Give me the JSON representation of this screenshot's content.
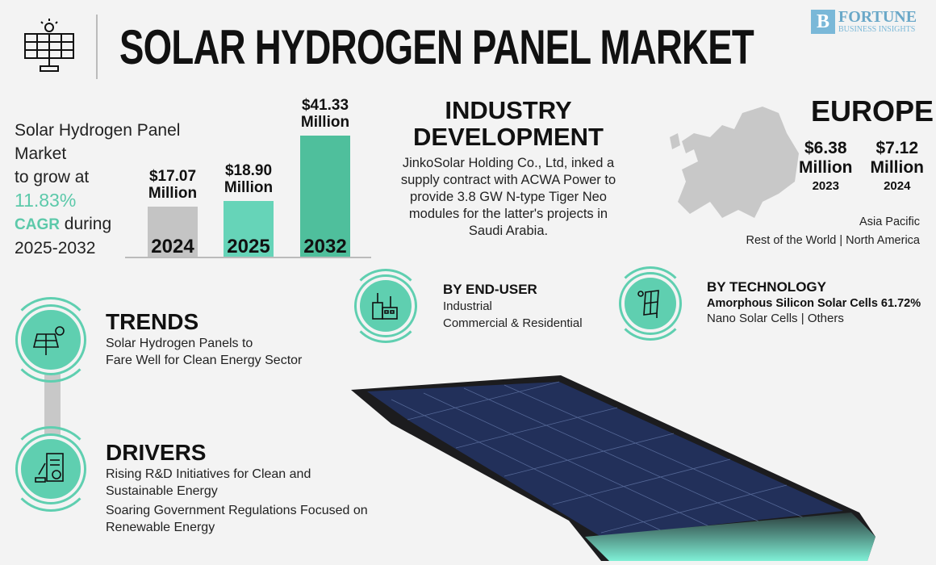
{
  "header": {
    "title": "SOLAR HYDROGEN PANEL MARKET",
    "logo_line1": "FORTUNE",
    "logo_line2": "BUSINESS INSIGHTS",
    "icon": "solar-panel-icon"
  },
  "summary": {
    "line1": "Solar Hydrogen Panel",
    "line2": "Market",
    "line3": "to grow at",
    "cagr_value": "11.83%",
    "cagr_label": "CAGR",
    "during": " during",
    "period": "2025-2032"
  },
  "chart_data": {
    "type": "bar",
    "categories": [
      "2024",
      "2025",
      "2032"
    ],
    "values": [
      17.07,
      18.9,
      41.33
    ],
    "value_labels": [
      "$17.07",
      "$18.90",
      "$41.33"
    ],
    "unit_label": "Million",
    "colors": [
      "#c4c4c4",
      "#66d4b8",
      "#4fbf9c"
    ]
  },
  "industry": {
    "title1": "INDUSTRY",
    "title2": "DEVELOPMENT",
    "text": [
      "JinkoSolar Holding Co., Ltd, inked a",
      "supply contract with ACWA Power to",
      "provide 3.8 GW N-type Tiger Neo",
      "modules for the latter's projects in",
      "Saudi Arabia."
    ]
  },
  "region": {
    "title": "EUROPE",
    "values": [
      {
        "amount": "$6.38",
        "unit": "Million",
        "year": "2023"
      },
      {
        "amount": "$7.12",
        "unit": "Million",
        "year": "2024"
      }
    ],
    "others_line1": "Asia Pacific",
    "others_line2a": "Rest of the World",
    "sep": "|",
    "others_line2b": "North America"
  },
  "end_user": {
    "title": "BY END-USER",
    "items": [
      "Industrial",
      "Commercial & Residential"
    ],
    "icon": "factory-icon"
  },
  "technology": {
    "title": "BY TECHNOLOGY",
    "lead": "Amorphous Silicon Solar Cells 61.72%",
    "item1": "Nano Solar Cells",
    "sep": "|",
    "item2": "Others",
    "icon": "solar-panel-icon"
  },
  "trends": {
    "title": "TRENDS",
    "lines": [
      "Solar Hydrogen Panels to",
      "Fare Well for Clean Energy Sector"
    ],
    "icon": "solar-sun-icon"
  },
  "drivers": {
    "title": "DRIVERS",
    "lines": [
      "Rising R&D Initiatives for Clean and",
      "Sustainable Energy",
      "Soaring Government Regulations Focused on",
      "Renewable Energy"
    ],
    "icon": "research-document-icon"
  },
  "colors": {
    "accent": "#5fcfb0",
    "dark": "#111111"
  }
}
